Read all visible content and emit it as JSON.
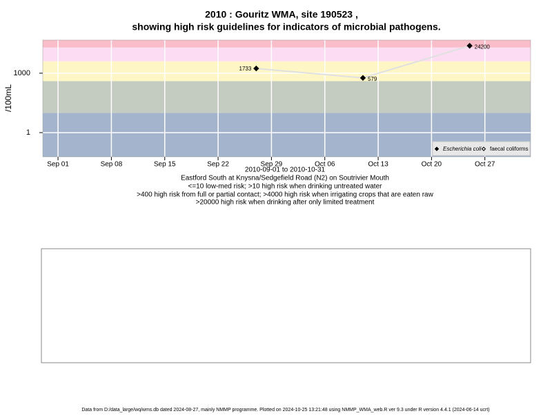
{
  "chart_data": {
    "type": "line",
    "log_scale": true,
    "grid": true,
    "title": [
      "2010 : Gouritz WMA, site 190523 ,",
      "showing high risk guidelines for indicators of microbial pathogens."
    ],
    "ylabel": "/100mL",
    "notes": [
      "2010-09-01 to 2010-10-31",
      "Eastford South at Knysna/Sedgefield Road (N2) on Soutrivier Mouth",
      "<=10 low-med risk; >10 high risk when drinking untreated water",
      ">400 high risk from full or partial contact; >4000 high risk when irrigating crops that are eaten raw",
      ">20000 high risk when drinking after only limited treatment"
    ],
    "x": [
      "2010-09-27",
      "2010-10-11",
      "2010-10-25"
    ],
    "series": [
      {
        "name": "Escherichia coli",
        "color": "#000000",
        "line_color": "#e0e0e0",
        "values": [
          1733,
          579,
          24200
        ]
      },
      {
        "name": "faecal coliforms",
        "color": "#000000",
        "values": [
          null,
          null,
          null
        ]
      }
    ],
    "xlim": [
      "2010-08-30",
      "2010-11-02"
    ],
    "xticks": [
      {
        "value": "2010-09-01",
        "label": "Sep 01"
      },
      {
        "value": "2010-09-08",
        "label": "Sep 08"
      },
      {
        "value": "2010-09-15",
        "label": "Sep 15"
      },
      {
        "value": "2010-09-22",
        "label": "Sep 22"
      },
      {
        "value": "2010-09-29",
        "label": "Sep 29"
      },
      {
        "value": "2010-10-06",
        "label": "Oct 06"
      },
      {
        "value": "2010-10-13",
        "label": "Oct 13"
      },
      {
        "value": "2010-10-20",
        "label": "Oct 20"
      },
      {
        "value": "2010-10-27",
        "label": "Oct 27"
      }
    ],
    "ylim": [
      0.06,
      47000
    ],
    "yticks": [
      1,
      1000
    ],
    "thresholds": [
      10,
      400,
      4000,
      20000
    ],
    "band_colors": [
      "#a3b4cc",
      "#c4cbc0",
      "#fff6c6",
      "#fcdcf2",
      "#f9bcc9"
    ],
    "legend": "bottom-right"
  },
  "footer": "Data from D:/data_large/wq/wms.db dated 2024-08-27, mainly NMMP programme. Plotted on 2024-10-25 13:21:48 using NMMP_WMA_web.R ver 9.3 under R version 4.4.1 (2024-06-14 ucrt)"
}
